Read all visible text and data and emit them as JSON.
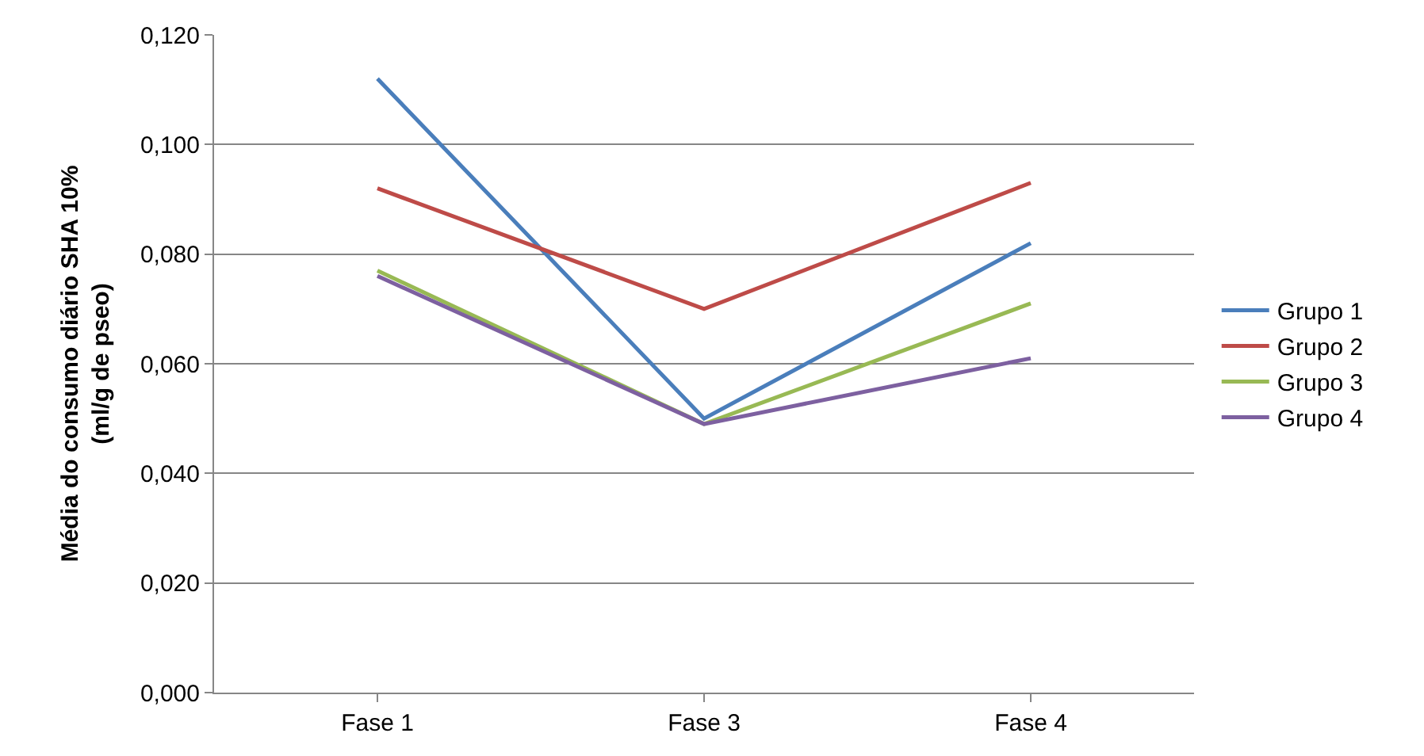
{
  "chart_data": {
    "type": "line",
    "ylabel": "Média do consumo diário SHA 10%\n(ml/g de pseo)",
    "categories": [
      "Fase 1",
      "Fase 3",
      "Fase 4"
    ],
    "series": [
      {
        "name": "Grupo 1",
        "color": "#4a7ebb",
        "values": [
          0.112,
          0.05,
          0.082
        ]
      },
      {
        "name": "Grupo 2",
        "color": "#be4b48",
        "values": [
          0.092,
          0.07,
          0.093
        ]
      },
      {
        "name": "Grupo 3",
        "color": "#98b954",
        "values": [
          0.077,
          0.049,
          0.071
        ]
      },
      {
        "name": "Grupo 4",
        "color": "#7d60a0",
        "values": [
          0.076,
          0.049,
          0.061
        ]
      }
    ],
    "ylim": [
      0,
      0.12
    ],
    "yticks": [
      {
        "value": 0,
        "label": "0,000"
      },
      {
        "value": 0.02,
        "label": "0,020"
      },
      {
        "value": 0.04,
        "label": "0,040"
      },
      {
        "value": 0.06,
        "label": "0,060"
      },
      {
        "value": 0.08,
        "label": "0,080"
      },
      {
        "value": 0.1,
        "label": "0,100"
      },
      {
        "value": 0.12,
        "label": "0,120"
      }
    ],
    "grid": "y",
    "legend": "right",
    "marker": "none",
    "line_style": "solid"
  }
}
